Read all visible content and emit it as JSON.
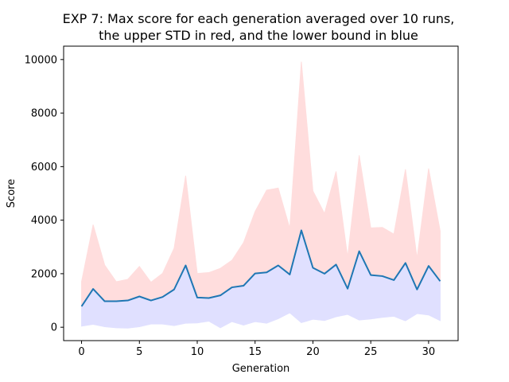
{
  "chart_data": {
    "type": "line",
    "title": "EXP 7: Max score for each generation averaged over 10 runs,",
    "subtitle": "the upper STD in red, and the lower bound in blue",
    "xlabel": "Generation",
    "ylabel": "Score",
    "xlim": [
      -1.55,
      32.55
    ],
    "ylim": [
      -500,
      10500
    ],
    "xticks": [
      0,
      5,
      10,
      15,
      20,
      25,
      30
    ],
    "yticks": [
      0,
      2000,
      4000,
      6000,
      8000,
      10000
    ],
    "xtick_labels": [
      "0",
      "5",
      "10",
      "15",
      "20",
      "25",
      "30"
    ],
    "ytick_labels": [
      "0",
      "2000",
      "4000",
      "6000",
      "8000",
      "10000"
    ],
    "grid": false,
    "x": [
      0,
      1,
      2,
      3,
      4,
      5,
      6,
      7,
      8,
      9,
      10,
      11,
      12,
      13,
      14,
      15,
      16,
      17,
      18,
      19,
      20,
      21,
      22,
      23,
      24,
      25,
      26,
      27,
      28,
      29,
      30,
      31
    ],
    "series": [
      {
        "role": "mean",
        "color": "#1f77b4",
        "values": [
          780,
          1430,
          970,
          970,
          1000,
          1150,
          1000,
          1130,
          1410,
          2310,
          1110,
          1090,
          1190,
          1490,
          1550,
          2010,
          2050,
          2310,
          1970,
          3620,
          2220,
          2000,
          2340,
          1440,
          2840,
          1950,
          1910,
          1760,
          2400,
          1410,
          2290,
          1720
        ]
      },
      {
        "role": "upper-std",
        "color": "#ff0000",
        "fill": "#ffdddd",
        "values": [
          1700,
          3830,
          2320,
          1700,
          1790,
          2270,
          1680,
          2010,
          2950,
          5660,
          2010,
          2040,
          2200,
          2500,
          3160,
          4320,
          5120,
          5200,
          3690,
          9920,
          5090,
          4250,
          5820,
          2620,
          6420,
          3710,
          3730,
          3480,
          5900,
          2570,
          5930,
          3590
        ]
      },
      {
        "role": "lower-bound",
        "color": "#0000ff",
        "fill": "#e0e0ff",
        "values": [
          40,
          110,
          20,
          -20,
          -30,
          20,
          120,
          120,
          60,
          150,
          160,
          230,
          -20,
          210,
          80,
          210,
          150,
          320,
          540,
          170,
          300,
          250,
          390,
          480,
          270,
          310,
          370,
          410,
          240,
          510,
          460,
          250
        ]
      }
    ]
  }
}
